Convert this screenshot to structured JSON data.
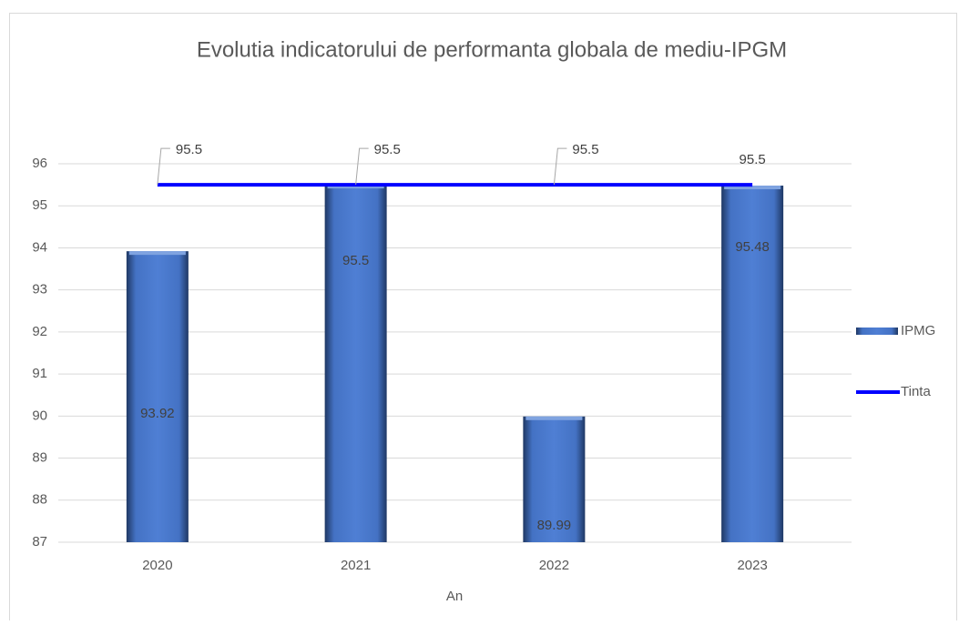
{
  "chart_data": {
    "type": "bar",
    "title": "Evolutia indicatorului de performanta globala de mediu-IPGM",
    "x_label": "An",
    "categories": [
      "2020",
      "2021",
      "2022",
      "2023"
    ],
    "series": [
      {
        "name": "IPMG",
        "type": "bar",
        "color": "#4472c4",
        "values": [
          93.92,
          95.5,
          89.99,
          95.48
        ]
      },
      {
        "name": "Tinta",
        "type": "line",
        "color": "#0000ff",
        "values": [
          95.5,
          95.5,
          95.5,
          95.5
        ]
      }
    ],
    "ylim": [
      87,
      96
    ],
    "yticks": [
      87,
      88,
      89,
      90,
      91,
      92,
      93,
      94,
      95,
      96
    ],
    "grid": true,
    "legend": "right"
  }
}
